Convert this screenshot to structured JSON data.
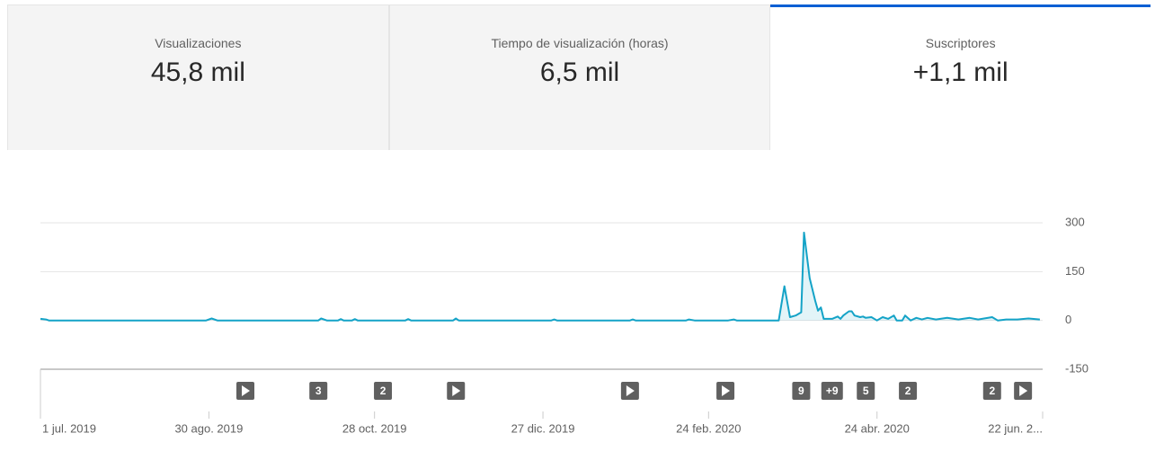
{
  "tabs": [
    {
      "label": "Visualizaciones",
      "value": "45,8 mil",
      "selected": false
    },
    {
      "label": "Tiempo de visualización (horas)",
      "value": "6,5 mil",
      "selected": false
    },
    {
      "label": "Suscriptores",
      "value": "+1,1 mil",
      "selected": true
    }
  ],
  "chart_data": {
    "type": "line",
    "x": [
      "2019-07-01",
      "2019-07-03",
      "2019-07-04",
      "2019-08-29",
      "2019-08-31",
      "2019-09-02",
      "2019-10-08",
      "2019-10-09",
      "2019-10-11",
      "2019-10-15",
      "2019-10-16",
      "2019-10-17",
      "2019-10-20",
      "2019-10-21",
      "2019-10-22",
      "2019-11-08",
      "2019-11-09",
      "2019-11-10",
      "2019-11-25",
      "2019-11-26",
      "2019-11-27",
      "2019-12-30",
      "2019-12-31",
      "2020-01-01",
      "2020-01-27",
      "2020-01-28",
      "2020-01-29",
      "2020-02-16",
      "2020-02-17",
      "2020-02-19",
      "2020-03-02",
      "2020-03-04",
      "2020-03-05",
      "2020-03-20",
      "2020-03-22",
      "2020-03-24",
      "2020-03-26",
      "2020-03-28",
      "2020-03-29",
      "2020-03-31",
      "2020-04-02",
      "2020-04-03",
      "2020-04-04",
      "2020-04-05",
      "2020-04-08",
      "2020-04-10",
      "2020-04-11",
      "2020-04-12",
      "2020-04-14",
      "2020-04-15",
      "2020-04-16",
      "2020-04-18",
      "2020-04-19",
      "2020-04-20",
      "2020-04-22",
      "2020-04-24",
      "2020-04-26",
      "2020-04-28",
      "2020-04-30",
      "2020-05-01",
      "2020-05-03",
      "2020-05-04",
      "2020-05-06",
      "2020-05-08",
      "2020-05-10",
      "2020-05-12",
      "2020-05-15",
      "2020-05-19",
      "2020-05-23",
      "2020-05-27",
      "2020-05-30",
      "2020-06-04",
      "2020-06-06",
      "2020-06-09",
      "2020-06-13",
      "2020-06-17",
      "2020-06-21"
    ],
    "series": [
      {
        "name": "Suscriptores",
        "color": "#14a3c7",
        "values": [
          5,
          3,
          0,
          0,
          6,
          0,
          0,
          6,
          0,
          0,
          4,
          0,
          0,
          4,
          0,
          0,
          4,
          0,
          0,
          6,
          0,
          0,
          3,
          0,
          0,
          3,
          0,
          0,
          3,
          0,
          0,
          3,
          0,
          0,
          105,
          10,
          15,
          25,
          270,
          130,
          60,
          30,
          40,
          5,
          5,
          12,
          5,
          15,
          28,
          28,
          15,
          10,
          12,
          8,
          10,
          0,
          10,
          5,
          15,
          0,
          0,
          15,
          0,
          8,
          3,
          8,
          3,
          8,
          3,
          8,
          3,
          10,
          0,
          3,
          3,
          6,
          3
        ]
      }
    ],
    "xlim": [
      "2019-07-01",
      "2020-06-22"
    ],
    "xticks": [
      {
        "value": "2019-07-01",
        "label": "1 jul. 2019"
      },
      {
        "value": "2019-08-30",
        "label": "30 ago. 2019"
      },
      {
        "value": "2019-10-28",
        "label": "28 oct. 2019"
      },
      {
        "value": "2019-12-27",
        "label": "27 dic. 2019"
      },
      {
        "value": "2020-02-24",
        "label": "24 feb. 2020"
      },
      {
        "value": "2020-04-24",
        "label": "24 abr. 2020"
      },
      {
        "value": "2020-06-22",
        "label": "22 jun. 2..."
      }
    ],
    "ylim": [
      -150,
      300
    ],
    "yticks": [
      -150,
      0,
      150,
      300
    ],
    "grid": true,
    "markers": [
      {
        "x": "2019-09-12"
      },
      {
        "x": "2019-10-08",
        "label": "3"
      },
      {
        "x": "2019-10-31",
        "label": "2"
      },
      {
        "x": "2019-11-26"
      },
      {
        "x": "2020-01-27"
      },
      {
        "x": "2020-03-01"
      },
      {
        "x": "2020-03-28",
        "label": "9"
      },
      {
        "x": "2020-04-08",
        "label": "+9"
      },
      {
        "x": "2020-04-20",
        "label": "5"
      },
      {
        "x": "2020-05-05",
        "label": "2"
      },
      {
        "x": "2020-06-04",
        "label": "2"
      },
      {
        "x": "2020-06-15"
      }
    ]
  }
}
